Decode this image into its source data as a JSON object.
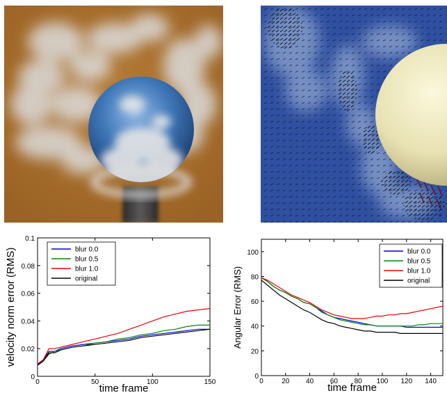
{
  "panels": {
    "smoke_render": {
      "background": "#a86e2c",
      "sphere_color": "#3f78b8",
      "smoke_color": "#dcdcdc"
    },
    "velocity_field": {
      "background": "#2f4fa0",
      "sphere_color": "#ece6b8",
      "arrow_color": "#111111"
    }
  },
  "chart_data": [
    {
      "type": "line",
      "xlabel": "time frame",
      "ylabel": "velocity norm error (RMS)",
      "xlim": [
        0,
        150
      ],
      "ylim": [
        0,
        0.1
      ],
      "xticks": [
        "0",
        "50",
        "100",
        "150"
      ],
      "yticks": [
        "0",
        "0.02",
        "0.04",
        "0.06",
        "0.08",
        "0.1"
      ],
      "grid": false,
      "legend_position": "top-left",
      "x": [
        0,
        5,
        10,
        15,
        20,
        30,
        40,
        50,
        60,
        70,
        80,
        90,
        100,
        110,
        120,
        130,
        140,
        150
      ],
      "series": [
        {
          "name": "blur 0.0",
          "color": "#0000dd",
          "values": [
            0.008,
            0.012,
            0.018,
            0.018,
            0.02,
            0.022,
            0.023,
            0.024,
            0.025,
            0.026,
            0.027,
            0.029,
            0.03,
            0.031,
            0.032,
            0.033,
            0.034,
            0.034
          ]
        },
        {
          "name": "blur 0.5",
          "color": "#008800",
          "values": [
            0.008,
            0.011,
            0.016,
            0.018,
            0.019,
            0.021,
            0.022,
            0.024,
            0.025,
            0.027,
            0.028,
            0.03,
            0.031,
            0.033,
            0.034,
            0.036,
            0.037,
            0.037
          ]
        },
        {
          "name": "blur 1.0",
          "color": "#ee0000",
          "values": [
            0.009,
            0.012,
            0.02,
            0.02,
            0.021,
            0.023,
            0.025,
            0.027,
            0.029,
            0.031,
            0.034,
            0.037,
            0.04,
            0.043,
            0.045,
            0.047,
            0.048,
            0.049
          ]
        },
        {
          "name": "original",
          "color": "#000000",
          "values": [
            0.008,
            0.011,
            0.017,
            0.017,
            0.019,
            0.021,
            0.022,
            0.023,
            0.024,
            0.025,
            0.026,
            0.028,
            0.029,
            0.03,
            0.031,
            0.032,
            0.033,
            0.034
          ]
        }
      ]
    },
    {
      "type": "line",
      "xlabel": "time frame",
      "ylabel": "Angular Error (RMS)",
      "xlim": [
        0,
        150
      ],
      "ylim": [
        0,
        110
      ],
      "xticks": [
        "0",
        "20",
        "40",
        "60",
        "80",
        "100",
        "120",
        "140"
      ],
      "yticks": [
        "0",
        "20",
        "40",
        "60",
        "80",
        "100"
      ],
      "grid": false,
      "legend_position": "top-right",
      "x": [
        0,
        5,
        10,
        15,
        20,
        25,
        30,
        35,
        40,
        45,
        50,
        55,
        60,
        65,
        70,
        75,
        80,
        85,
        90,
        95,
        100,
        105,
        110,
        115,
        120,
        125,
        130,
        135,
        140,
        145,
        150
      ],
      "series": [
        {
          "name": "blur 0.0",
          "color": "#0000dd",
          "values": [
            79,
            76,
            72,
            69,
            67,
            64,
            62,
            59,
            58,
            55,
            52,
            49,
            47,
            46,
            45,
            44,
            43,
            42,
            41,
            40,
            40,
            40,
            40,
            40,
            39,
            39,
            39,
            39,
            39,
            39,
            39
          ]
        },
        {
          "name": "blur 0.5",
          "color": "#008800",
          "values": [
            79,
            76,
            72,
            69,
            67,
            64,
            62,
            59,
            58,
            55,
            51,
            49,
            47,
            45,
            44,
            43,
            42,
            41,
            41,
            40,
            40,
            40,
            40,
            40,
            40,
            40,
            41,
            41,
            42,
            42,
            42
          ]
        },
        {
          "name": "blur 1.0",
          "color": "#ee0000",
          "values": [
            79,
            77,
            74,
            71,
            68,
            65,
            63,
            61,
            59,
            56,
            53,
            51,
            49,
            48,
            47,
            46,
            46,
            46,
            47,
            48,
            48,
            49,
            49,
            50,
            50,
            51,
            52,
            53,
            54,
            55,
            56
          ]
        },
        {
          "name": "original",
          "color": "#000000",
          "values": [
            77,
            73,
            69,
            65,
            62,
            59,
            56,
            53,
            51,
            48,
            45,
            43,
            42,
            40,
            39,
            38,
            37,
            36,
            36,
            35,
            35,
            35,
            35,
            34,
            34,
            34,
            34,
            34,
            34,
            34,
            34
          ]
        }
      ]
    }
  ]
}
